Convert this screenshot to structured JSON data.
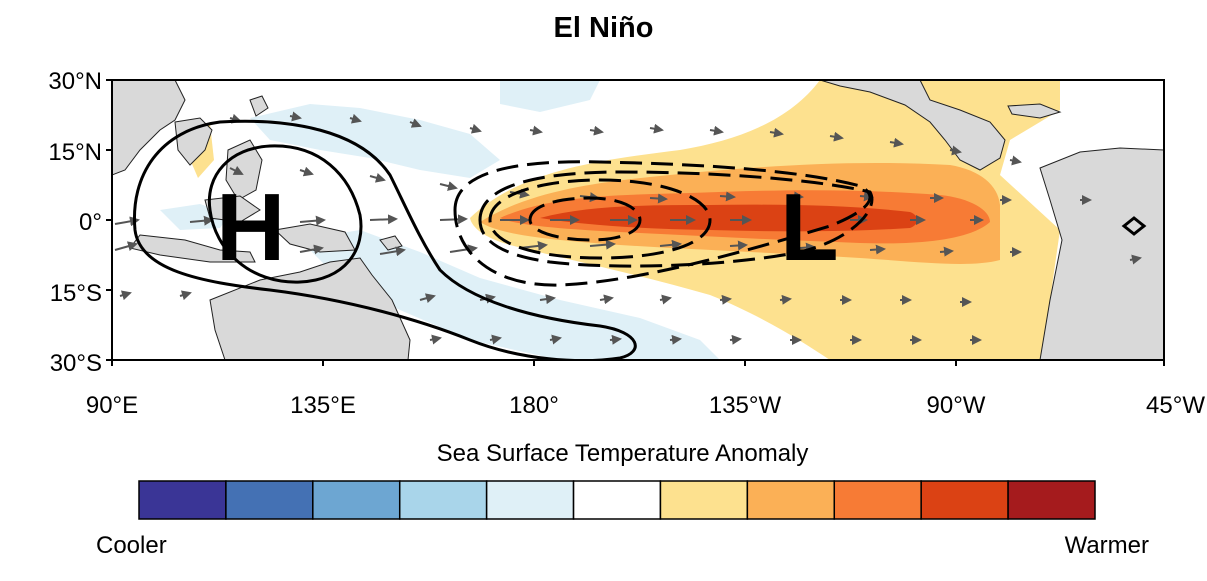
{
  "title": "El Niño",
  "lat_labels": [
    "30°N",
    "15°N",
    "0°",
    "15°S",
    "30°S"
  ],
  "lon_labels": [
    "90°E",
    "135°E",
    "180°",
    "135°W",
    "90°W",
    "45°W"
  ],
  "pressure_labels": {
    "high": "H",
    "low": "L"
  },
  "colorbar": {
    "title": "Sea Surface Temperature Anomaly",
    "low_label": "Cooler",
    "high_label": "Warmer",
    "colors": [
      "#3a3596",
      "#4471b4",
      "#6da6d2",
      "#a9d5ea",
      "#dff0f7",
      "#ffffff",
      "#fde18f",
      "#fbb056",
      "#f77b35",
      "#db4214",
      "#a51b1d"
    ]
  },
  "map": {
    "lon_range": [
      90,
      315
    ],
    "lat_range": [
      -30,
      30
    ],
    "colors": {
      "land": "#d9d9d9",
      "ocean": "#ffffff",
      "contour": "#000000",
      "wind_arrow": "#555555"
    }
  }
}
